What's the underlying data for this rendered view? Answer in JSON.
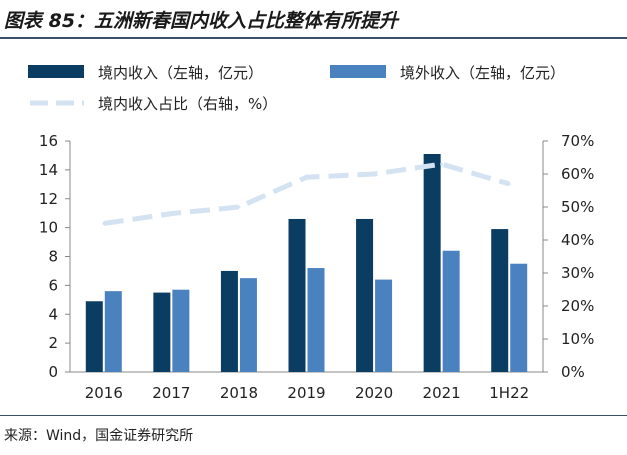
{
  "header": {
    "title": "图表 85：五洲新春国内收入占比整体有所提升"
  },
  "footer": {
    "source": "来源：Wind，国金证券研究所"
  },
  "colors": {
    "domestic": "#0b3d62",
    "overseas": "#4a82c0",
    "ratio": "#d4e3f1"
  },
  "chart_data": {
    "type": "bar",
    "categories": [
      "2016",
      "2017",
      "2018",
      "2019",
      "2020",
      "2021",
      "1H22"
    ],
    "series": [
      {
        "name": "境内收入（左轴，亿元）",
        "type": "bar",
        "axis": "left",
        "values": [
          4.9,
          5.5,
          7.0,
          10.6,
          10.6,
          15.1,
          9.9
        ]
      },
      {
        "name": "境外收入（左轴，亿元）",
        "type": "bar",
        "axis": "left",
        "values": [
          5.6,
          5.7,
          6.5,
          7.2,
          6.4,
          8.4,
          7.5
        ]
      },
      {
        "name": "境内收入占比（右轴，%）",
        "type": "line",
        "axis": "right",
        "values": [
          45,
          48,
          50,
          59,
          60,
          63,
          57
        ]
      }
    ],
    "ylim_left": [
      0,
      16
    ],
    "yticks_left": [
      "0",
      "2",
      "4",
      "6",
      "8",
      "10",
      "12",
      "14",
      "16"
    ],
    "ylim_right": [
      0,
      70
    ],
    "yticks_right": [
      "0%",
      "10%",
      "20%",
      "30%",
      "40%",
      "50%",
      "60%",
      "70%"
    ],
    "legend_position": "top",
    "grid": false
  }
}
